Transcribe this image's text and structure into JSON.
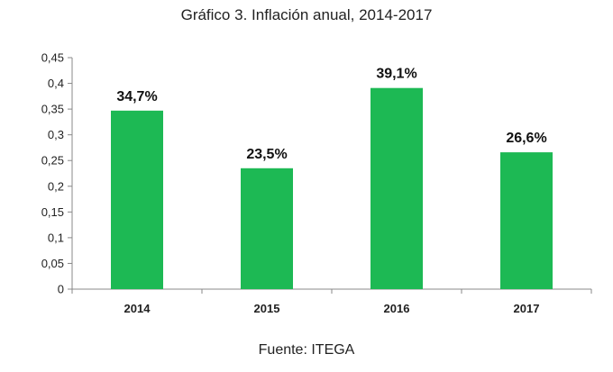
{
  "chart_data": {
    "type": "bar",
    "title": "Gráfico 3. Inflación anual, 2014-2017",
    "categories": [
      "2014",
      "2015",
      "2016",
      "2017"
    ],
    "values": [
      0.347,
      0.235,
      0.391,
      0.266
    ],
    "data_labels": [
      "34,7%",
      "23,5%",
      "39,1%",
      "26,6%"
    ],
    "yticks": [
      "0",
      "0,05",
      "0,1",
      "0,15",
      "0,2",
      "0,25",
      "0,3",
      "0,35",
      "0,4",
      "0,45"
    ],
    "ylim": [
      0,
      0.45
    ],
    "xlabel": "",
    "ylabel": "",
    "grid": false,
    "legend": "none",
    "bar_color": "#1db954"
  },
  "source": "Fuente: ITEGA"
}
